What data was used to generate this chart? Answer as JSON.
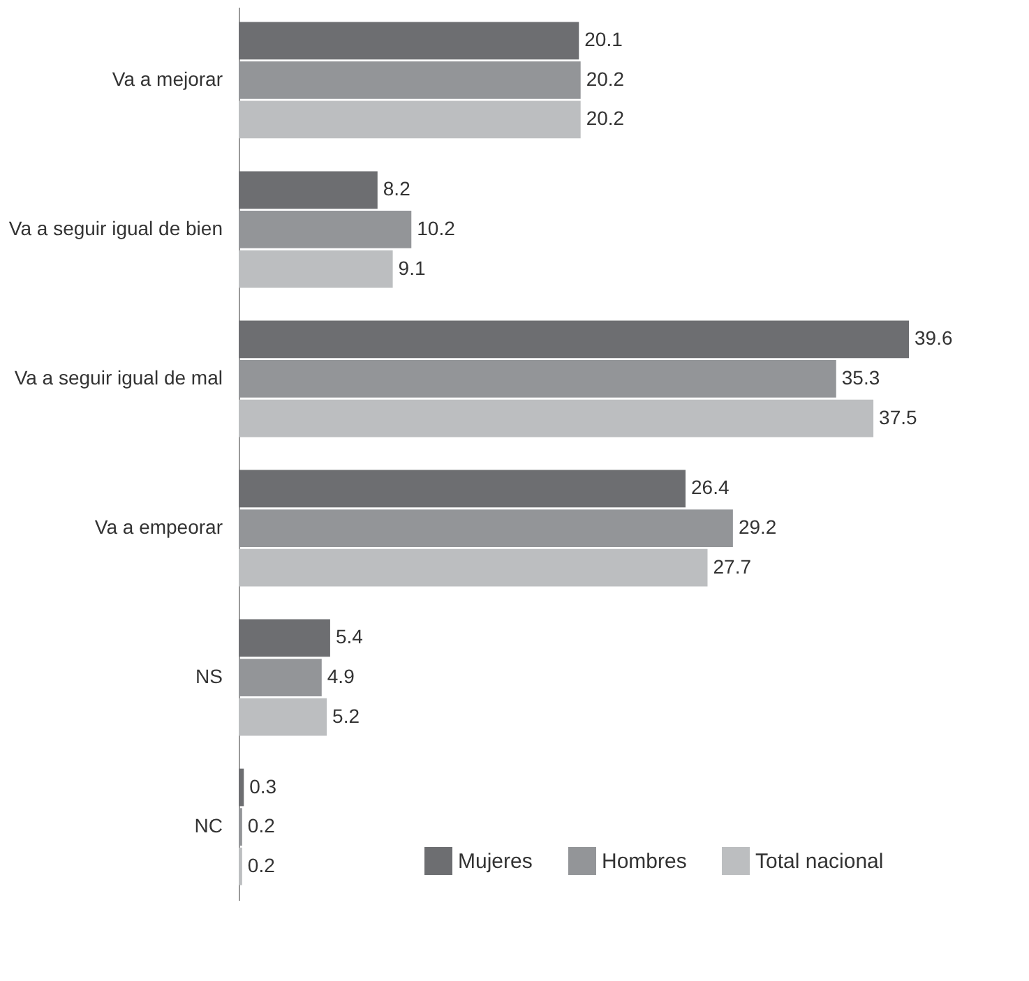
{
  "chart_data": {
    "type": "bar",
    "orientation": "horizontal",
    "categories": [
      "Va a mejorar",
      "Va a seguir igual de bien",
      "Va a seguir igual de mal",
      "Va a empeorar",
      "NS",
      "NC"
    ],
    "series": [
      {
        "name": "Mujeres",
        "color": "#6d6e71",
        "values": [
          20.1,
          8.2,
          39.6,
          26.4,
          5.4,
          0.3
        ]
      },
      {
        "name": "Hombres",
        "color": "#939598",
        "values": [
          20.2,
          10.2,
          35.3,
          29.2,
          4.9,
          0.2
        ]
      },
      {
        "name": "Total nacional",
        "color": "#bcbec0",
        "values": [
          20.2,
          9.1,
          37.5,
          27.7,
          5.2,
          0.2
        ]
      }
    ],
    "data_labels": true,
    "legend": "bottom right",
    "grid": false
  }
}
